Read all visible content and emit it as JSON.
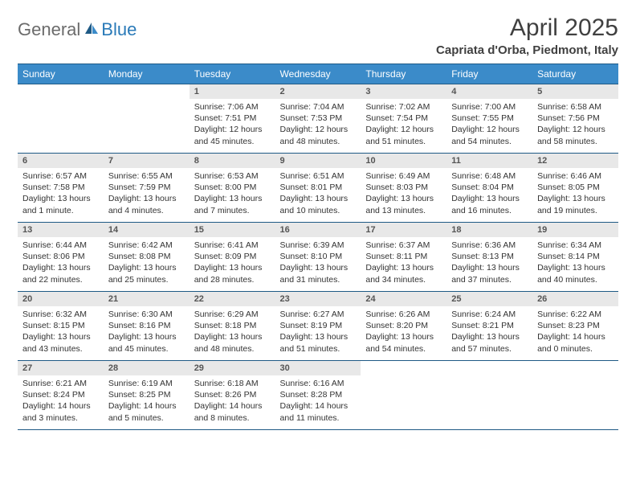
{
  "logo": {
    "text1": "General",
    "text2": "Blue"
  },
  "title": "April 2025",
  "location": "Capriata d'Orba, Piedmont, Italy",
  "colors": {
    "header_bg": "#3b8bc9",
    "header_border": "#1f5a85",
    "daynum_bg": "#e8e8e8",
    "text": "#333333",
    "logo_gray": "#6b6b6b",
    "logo_blue": "#2a7ab8"
  },
  "weekdays": [
    "Sunday",
    "Monday",
    "Tuesday",
    "Wednesday",
    "Thursday",
    "Friday",
    "Saturday"
  ],
  "grid": [
    [
      null,
      null,
      {
        "n": "1",
        "sr": "7:06 AM",
        "ss": "7:51 PM",
        "dl": "12 hours and 45 minutes."
      },
      {
        "n": "2",
        "sr": "7:04 AM",
        "ss": "7:53 PM",
        "dl": "12 hours and 48 minutes."
      },
      {
        "n": "3",
        "sr": "7:02 AM",
        "ss": "7:54 PM",
        "dl": "12 hours and 51 minutes."
      },
      {
        "n": "4",
        "sr": "7:00 AM",
        "ss": "7:55 PM",
        "dl": "12 hours and 54 minutes."
      },
      {
        "n": "5",
        "sr": "6:58 AM",
        "ss": "7:56 PM",
        "dl": "12 hours and 58 minutes."
      }
    ],
    [
      {
        "n": "6",
        "sr": "6:57 AM",
        "ss": "7:58 PM",
        "dl": "13 hours and 1 minute."
      },
      {
        "n": "7",
        "sr": "6:55 AM",
        "ss": "7:59 PM",
        "dl": "13 hours and 4 minutes."
      },
      {
        "n": "8",
        "sr": "6:53 AM",
        "ss": "8:00 PM",
        "dl": "13 hours and 7 minutes."
      },
      {
        "n": "9",
        "sr": "6:51 AM",
        "ss": "8:01 PM",
        "dl": "13 hours and 10 minutes."
      },
      {
        "n": "10",
        "sr": "6:49 AM",
        "ss": "8:03 PM",
        "dl": "13 hours and 13 minutes."
      },
      {
        "n": "11",
        "sr": "6:48 AM",
        "ss": "8:04 PM",
        "dl": "13 hours and 16 minutes."
      },
      {
        "n": "12",
        "sr": "6:46 AM",
        "ss": "8:05 PM",
        "dl": "13 hours and 19 minutes."
      }
    ],
    [
      {
        "n": "13",
        "sr": "6:44 AM",
        "ss": "8:06 PM",
        "dl": "13 hours and 22 minutes."
      },
      {
        "n": "14",
        "sr": "6:42 AM",
        "ss": "8:08 PM",
        "dl": "13 hours and 25 minutes."
      },
      {
        "n": "15",
        "sr": "6:41 AM",
        "ss": "8:09 PM",
        "dl": "13 hours and 28 minutes."
      },
      {
        "n": "16",
        "sr": "6:39 AM",
        "ss": "8:10 PM",
        "dl": "13 hours and 31 minutes."
      },
      {
        "n": "17",
        "sr": "6:37 AM",
        "ss": "8:11 PM",
        "dl": "13 hours and 34 minutes."
      },
      {
        "n": "18",
        "sr": "6:36 AM",
        "ss": "8:13 PM",
        "dl": "13 hours and 37 minutes."
      },
      {
        "n": "19",
        "sr": "6:34 AM",
        "ss": "8:14 PM",
        "dl": "13 hours and 40 minutes."
      }
    ],
    [
      {
        "n": "20",
        "sr": "6:32 AM",
        "ss": "8:15 PM",
        "dl": "13 hours and 43 minutes."
      },
      {
        "n": "21",
        "sr": "6:30 AM",
        "ss": "8:16 PM",
        "dl": "13 hours and 45 minutes."
      },
      {
        "n": "22",
        "sr": "6:29 AM",
        "ss": "8:18 PM",
        "dl": "13 hours and 48 minutes."
      },
      {
        "n": "23",
        "sr": "6:27 AM",
        "ss": "8:19 PM",
        "dl": "13 hours and 51 minutes."
      },
      {
        "n": "24",
        "sr": "6:26 AM",
        "ss": "8:20 PM",
        "dl": "13 hours and 54 minutes."
      },
      {
        "n": "25",
        "sr": "6:24 AM",
        "ss": "8:21 PM",
        "dl": "13 hours and 57 minutes."
      },
      {
        "n": "26",
        "sr": "6:22 AM",
        "ss": "8:23 PM",
        "dl": "14 hours and 0 minutes."
      }
    ],
    [
      {
        "n": "27",
        "sr": "6:21 AM",
        "ss": "8:24 PM",
        "dl": "14 hours and 3 minutes."
      },
      {
        "n": "28",
        "sr": "6:19 AM",
        "ss": "8:25 PM",
        "dl": "14 hours and 5 minutes."
      },
      {
        "n": "29",
        "sr": "6:18 AM",
        "ss": "8:26 PM",
        "dl": "14 hours and 8 minutes."
      },
      {
        "n": "30",
        "sr": "6:16 AM",
        "ss": "8:28 PM",
        "dl": "14 hours and 11 minutes."
      },
      null,
      null,
      null
    ]
  ],
  "labels": {
    "sunrise": "Sunrise: ",
    "sunset": "Sunset: ",
    "daylight": "Daylight: "
  }
}
